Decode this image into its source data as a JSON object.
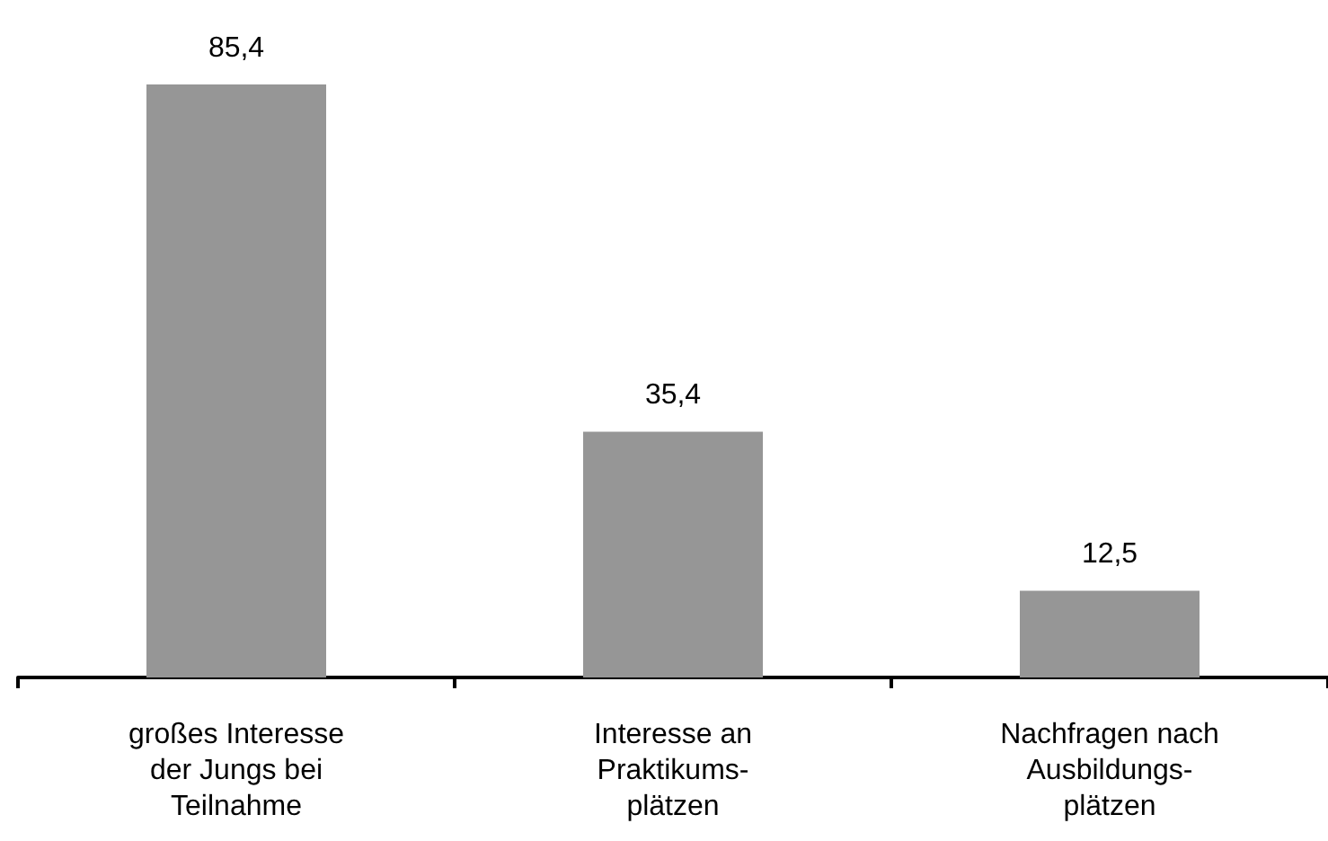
{
  "chart_data": {
    "type": "bar",
    "categories": [
      "großes Interesse\nder Jungs bei\nTeilnahme",
      "Interesse an\nPraktikums-\nplätzen",
      "Nachfragen nach\nAusbildungs-\nplätzen"
    ],
    "values": [
      85.4,
      35.4,
      12.5
    ],
    "value_labels": [
      "85,4",
      "35,4",
      "12,5"
    ],
    "color": "#969696"
  }
}
